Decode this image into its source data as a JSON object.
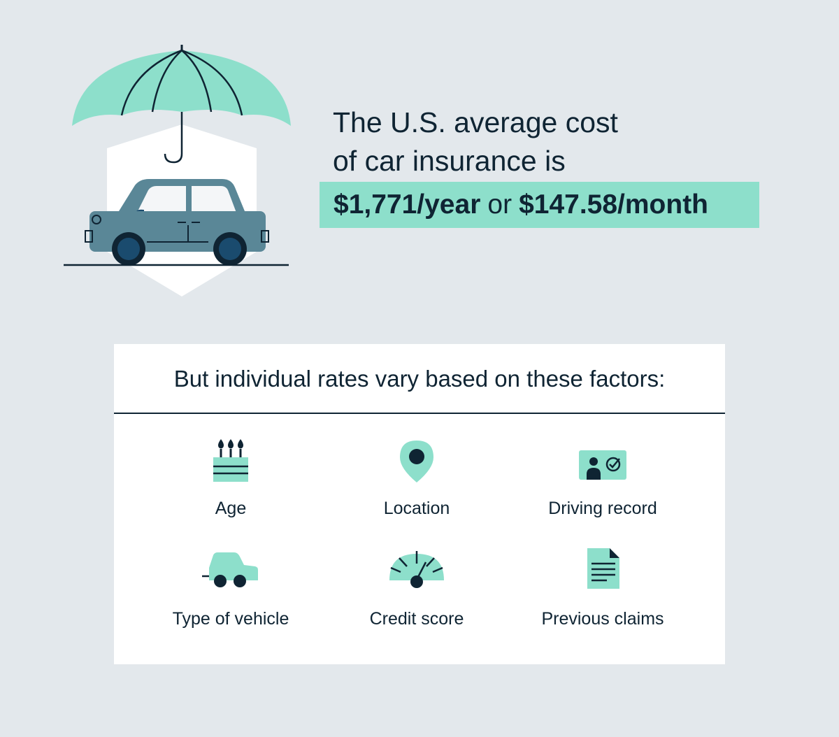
{
  "headline": {
    "line1": "The U.S. average cost",
    "line2": "of car insurance is",
    "yearly": "$1,771/year",
    "connector": "or",
    "monthly": "$147.58/month"
  },
  "factors": {
    "title": "But individual rates vary based on these factors:",
    "items": [
      {
        "label": "Age",
        "icon": "birthday-cake-icon"
      },
      {
        "label": "Location",
        "icon": "location-pin-icon"
      },
      {
        "label": "Driving record",
        "icon": "driver-license-icon"
      },
      {
        "label": "Type of vehicle",
        "icon": "car-icon"
      },
      {
        "label": "Credit score",
        "icon": "gauge-icon"
      },
      {
        "label": "Previous claims",
        "icon": "document-icon"
      }
    ]
  },
  "colors": {
    "background": "#e3e8ec",
    "mint": "#8ddfcb",
    "navy": "#0f2433",
    "car": "#5a8797",
    "wheel": "#1a4b6e"
  }
}
